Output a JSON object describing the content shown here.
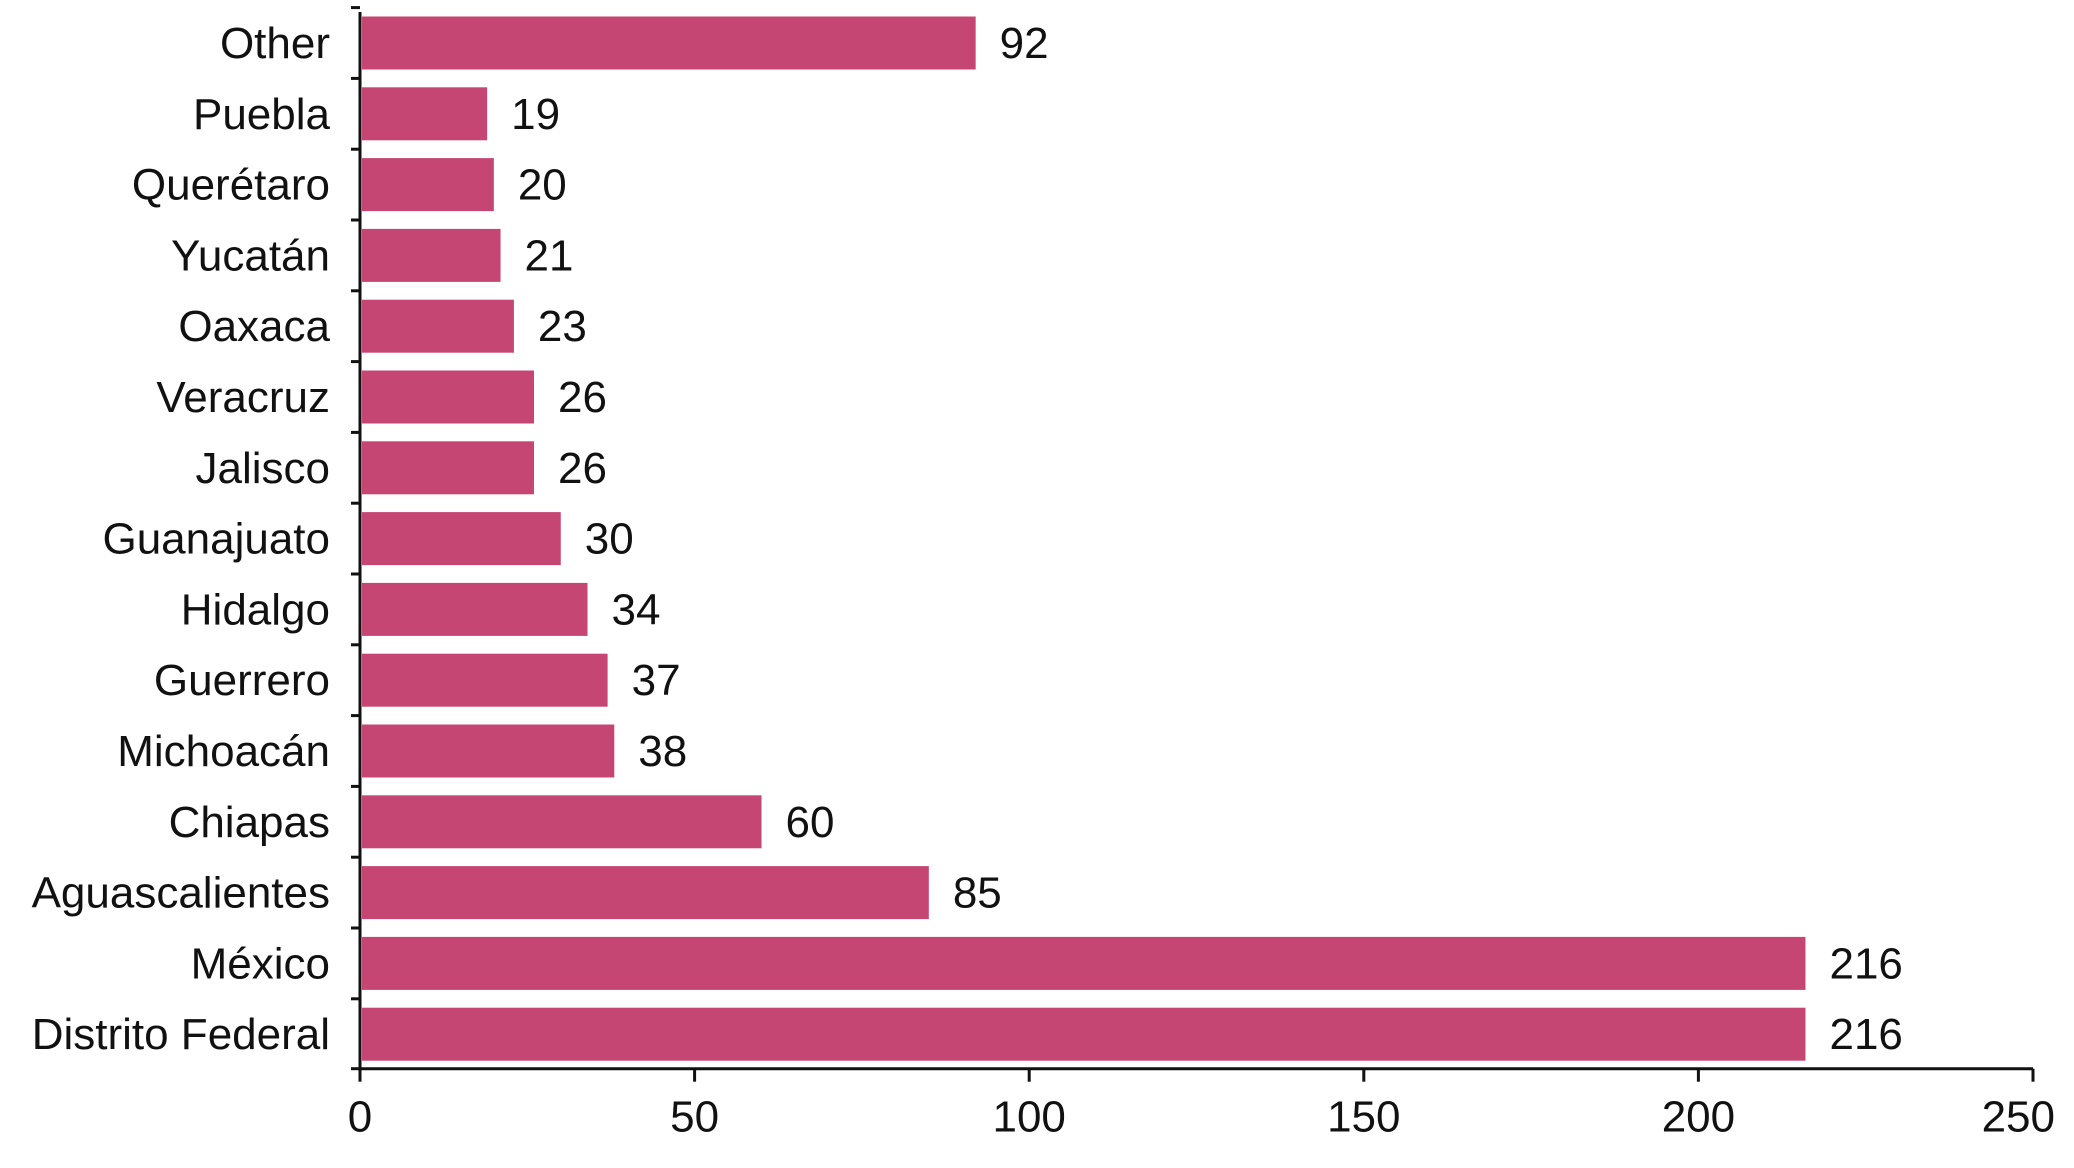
{
  "chart_data": {
    "type": "bar",
    "orientation": "horizontal",
    "title": "",
    "xlabel": "",
    "ylabel": "",
    "categories": [
      "Other",
      "Puebla",
      "Querétaro",
      "Yucatán",
      "Oaxaca",
      "Veracruz",
      "Jalisco",
      "Guanajuato",
      "Hidalgo",
      "Guerrero",
      "Michoacán",
      "Chiapas",
      "Aguascalientes",
      "México",
      "Distrito Federal"
    ],
    "values": [
      92,
      19,
      20,
      21,
      23,
      26,
      26,
      30,
      34,
      37,
      38,
      60,
      85,
      216,
      216
    ],
    "value_labels": [
      "92",
      "19",
      "20",
      "21",
      "23",
      "26",
      "26",
      "30",
      "34",
      "37",
      "38",
      "60",
      "85",
      "216",
      "216"
    ],
    "xlim": [
      0,
      250
    ],
    "xticks": [
      0,
      50,
      100,
      150,
      200,
      250
    ],
    "xtick_labels": [
      "0",
      "50",
      "100",
      "150",
      "200",
      "250"
    ],
    "grid": false,
    "legend": "none",
    "bar_color": "#C54672"
  }
}
